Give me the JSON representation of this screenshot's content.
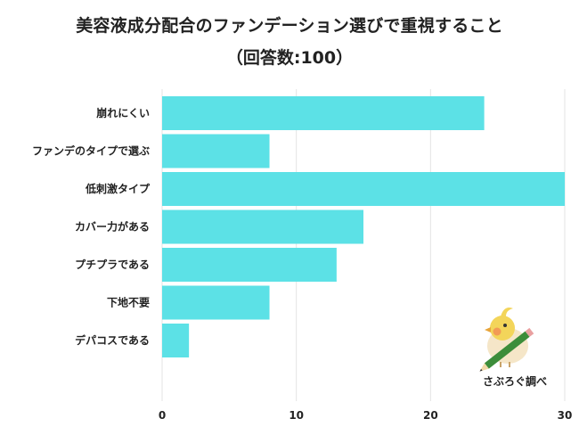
{
  "chart_data": {
    "type": "bar",
    "orientation": "horizontal",
    "title": "美容液成分配合のファンデーション選びで重視すること",
    "subtitle": "（回答数:100）",
    "categories": [
      "崩れにくい",
      "ファンデのタイプで選ぶ",
      "低刺激タイプ",
      "カバー力がある",
      "プチプラである",
      "下地不要",
      "デパコスである"
    ],
    "values": [
      24,
      8,
      30,
      15,
      13,
      8,
      2
    ],
    "xlim": [
      0,
      30
    ],
    "xticks": [
      0,
      10,
      20,
      30
    ],
    "grid": true,
    "colors": {
      "bar": "#5ce1e6",
      "grid": "#e3e3e3"
    }
  },
  "logo": {
    "text": "さぶろぐ調べ"
  }
}
